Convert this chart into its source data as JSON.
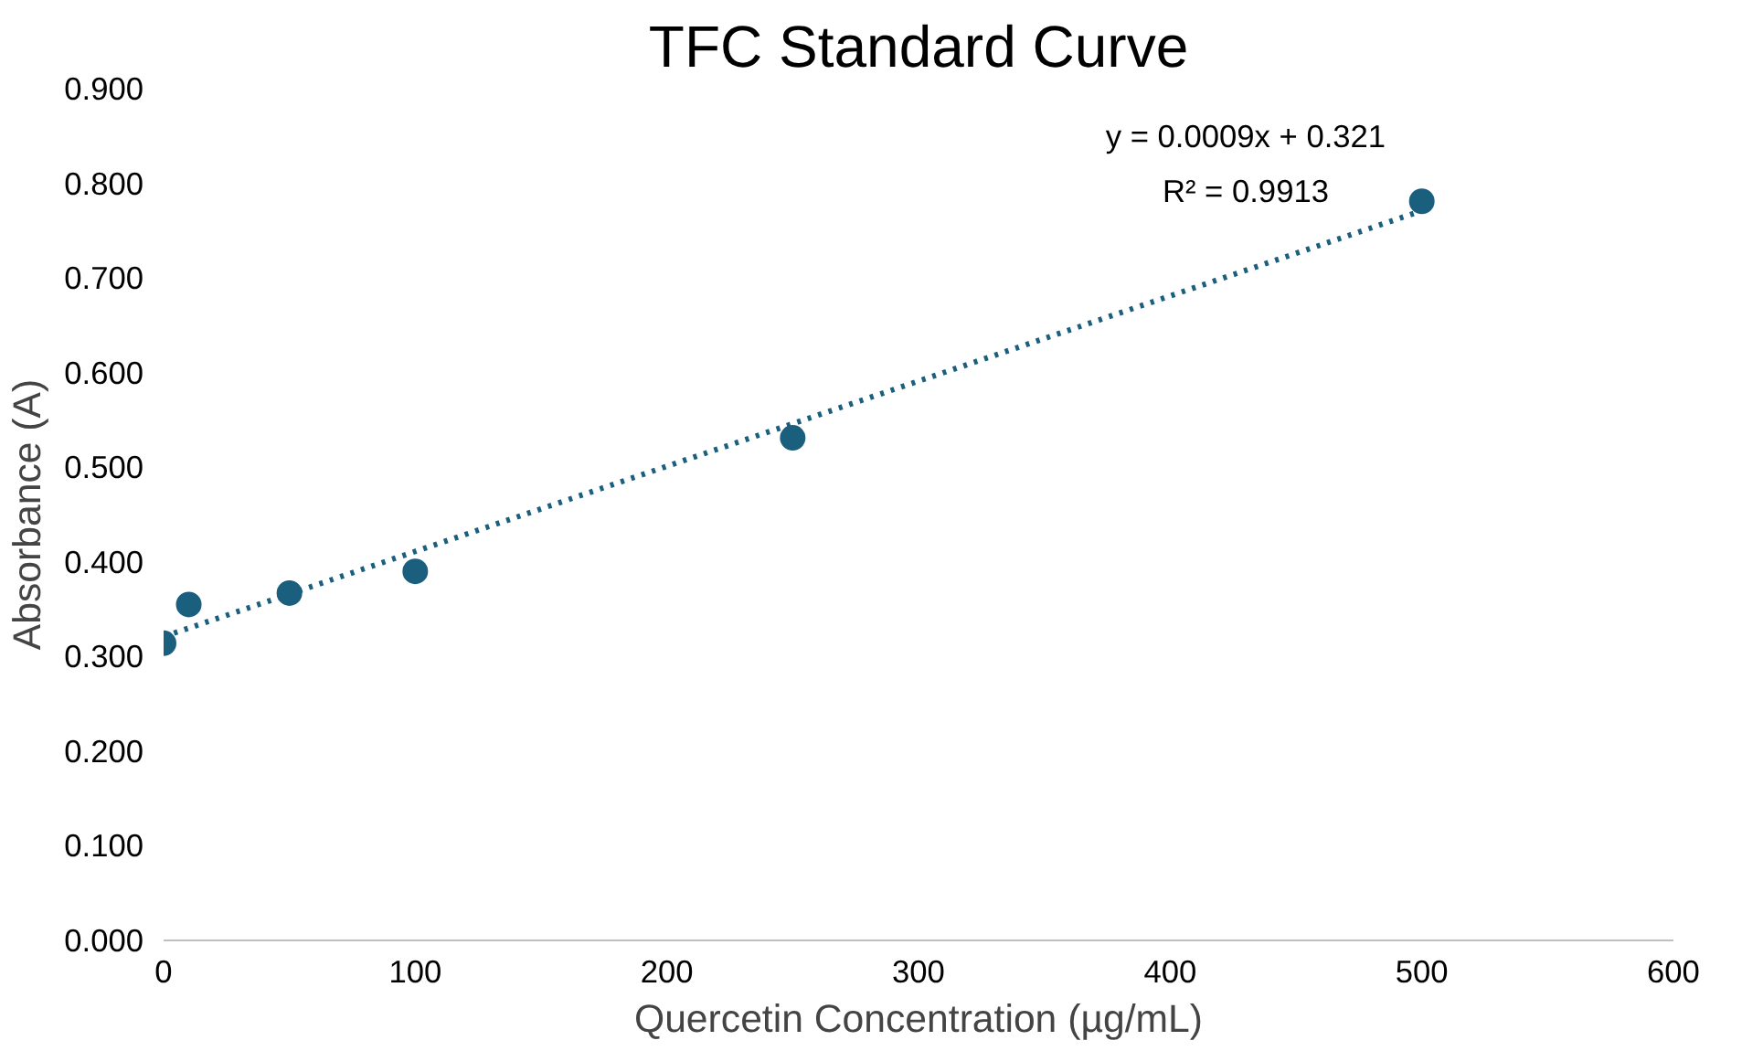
{
  "chart_data": {
    "type": "scatter",
    "title": "TFC Standard Curve",
    "xlabel": "Quercetin Concentration (µg/mL)",
    "ylabel": "Absorbance (A)",
    "x": [
      0,
      10,
      50,
      100,
      250,
      500
    ],
    "series": [
      {
        "color": "#1b5f7e",
        "values": [
          0.314,
          0.355,
          0.367,
          0.39,
          0.531,
          0.781
        ],
        "marker": "circle"
      },
      {
        "type": "line",
        "color": "#1b5f7e",
        "x": [
          0,
          500
        ],
        "values": [
          0.321,
          0.771
        ],
        "line_style": "dotted",
        "marker": "none"
      }
    ],
    "annotations": [
      "y = 0.0009x + 0.321",
      "R² = 0.9913"
    ],
    "xlim": [
      0,
      600
    ],
    "xticks": [
      0,
      100,
      200,
      300,
      400,
      500,
      600
    ],
    "ylim": [
      0,
      0.9
    ],
    "yticks": [
      {
        "value": 0,
        "label": "0.000"
      },
      {
        "value": 0.1,
        "label": "0.100"
      },
      {
        "value": 0.2,
        "label": "0.200"
      },
      {
        "value": 0.3,
        "label": "0.300"
      },
      {
        "value": 0.4,
        "label": "0.400"
      },
      {
        "value": 0.5,
        "label": "0.500"
      },
      {
        "value": 0.6,
        "label": "0.600"
      },
      {
        "value": 0.7,
        "label": "0.700"
      },
      {
        "value": 0.8,
        "label": "0.800"
      },
      {
        "value": 0.9,
        "label": "0.900"
      }
    ],
    "grid": false
  }
}
